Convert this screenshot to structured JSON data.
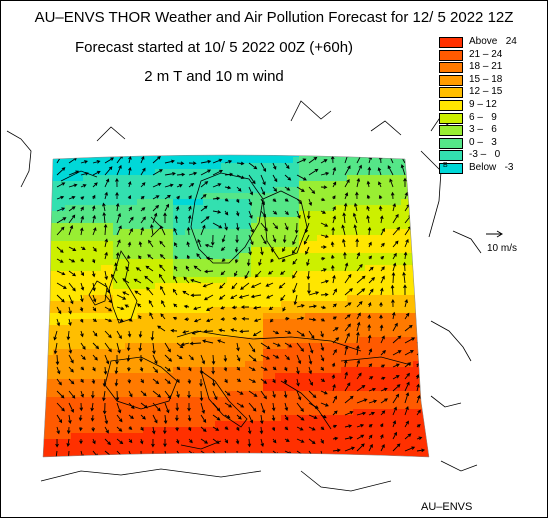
{
  "header": {
    "title": "AU–ENVS THOR Weather and Air Pollution Forecast for 12/ 5 2022  12Z",
    "subtitle": "Forecast started at 10/ 5 2022  00Z (+60h)",
    "field": "2 m T and 10 m wind"
  },
  "legend": {
    "items": [
      {
        "label": "Above   24",
        "color": "#ff3000"
      },
      {
        "label": "21 – 24",
        "color": "#ff5a00"
      },
      {
        "label": "18 – 21",
        "color": "#ff7a00"
      },
      {
        "label": "15 – 18",
        "color": "#ff9c00"
      },
      {
        "label": "12 – 15",
        "color": "#ffbe00"
      },
      {
        "label": "9 – 12",
        "color": "#ffe600"
      },
      {
        "label": "6 –   9",
        "color": "#ccf000"
      },
      {
        "label": "3 –   6",
        "color": "#99ee33"
      },
      {
        "label": "0 –   3",
        "color": "#55e688"
      },
      {
        "label": "-3 –   0",
        "color": "#33e0b0"
      },
      {
        "label": "Below   -3",
        "color": "#00d8d8"
      }
    ],
    "below_marker": "B"
  },
  "wind_reference": {
    "label": "10 m/s"
  },
  "footer": {
    "credit": "AU–ENVS"
  },
  "colors": {
    "coastline": "#000000",
    "arrow": "#000000",
    "background": "#ffffff"
  }
}
